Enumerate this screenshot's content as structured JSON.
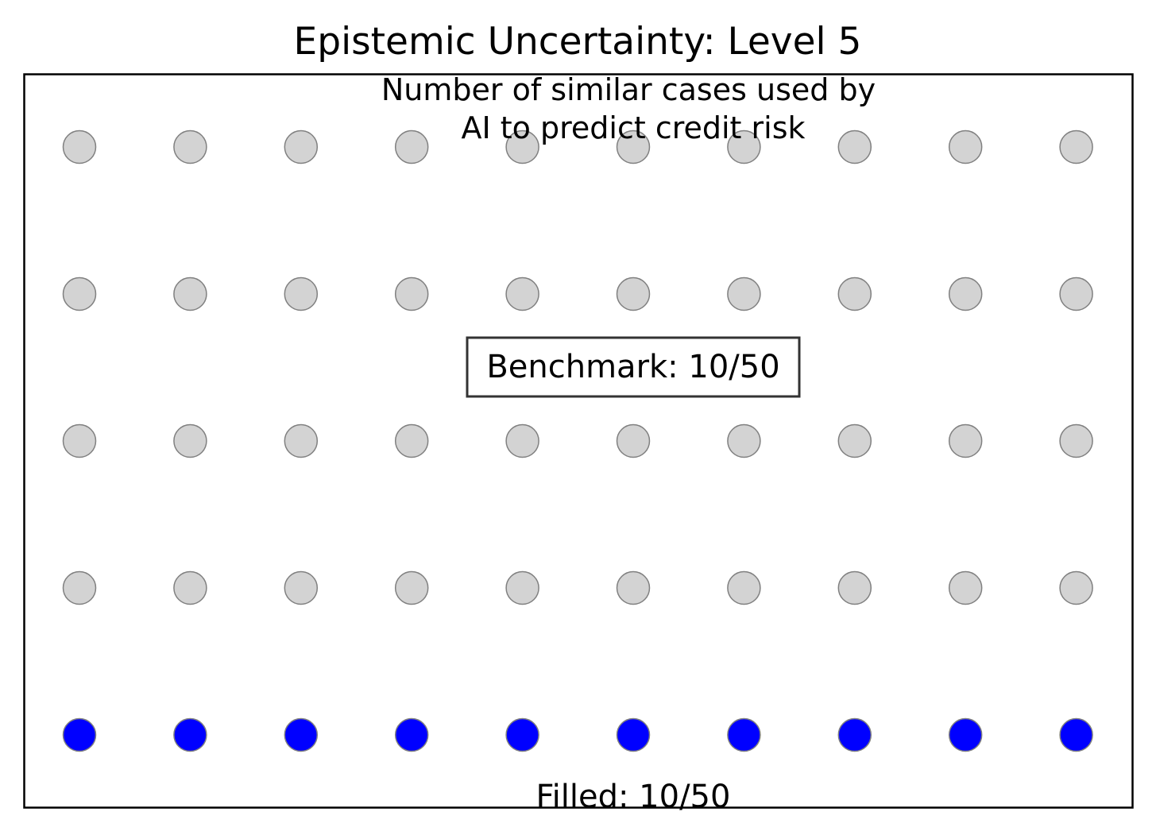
{
  "chart_data": {
    "type": "scatter",
    "title": "Epistemic Uncertainty: Level 5",
    "subtitle_lines": [
      "Number of similar cases used by",
      "AI to predict credit risk"
    ],
    "benchmark_label": "Benchmark: 10/50",
    "filled_label": "Filled: 10/50",
    "grid": {
      "columns": 10,
      "rows": 5
    },
    "total": 50,
    "filled": 10,
    "grid_lines": false,
    "colors": {
      "filled": "#0000ff",
      "empty": "#d3d3d3",
      "marker_edge": "#808080",
      "frame": "#000000",
      "benchmark_box_edge": "#333333"
    }
  }
}
